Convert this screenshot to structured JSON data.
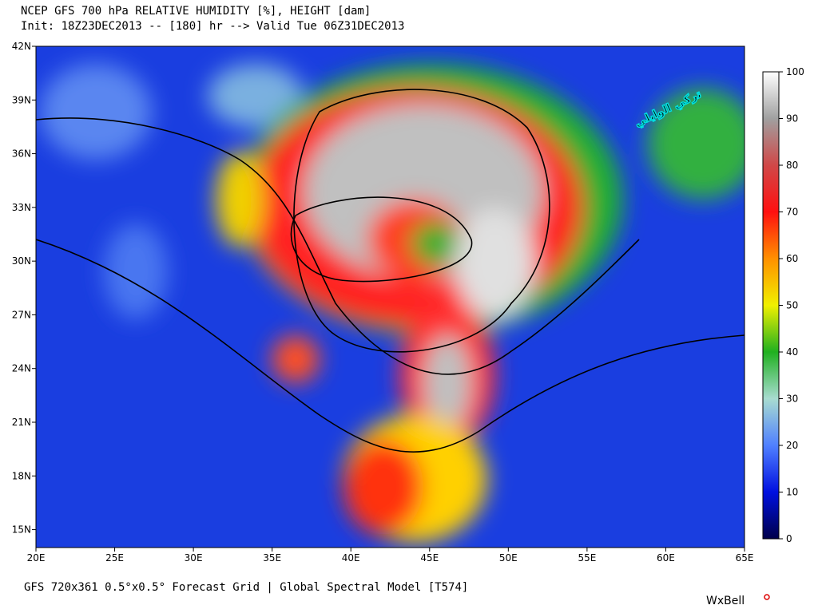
{
  "header": {
    "title": "NCEP GFS 700 hPa RELATIVE HUMIDITY [%], HEIGHT [dam]",
    "init": "Init: 18Z23DEC2013 -- [180] hr --> Valid Tue 06Z31DEC2013"
  },
  "map": {
    "xlim": [
      20,
      65
    ],
    "ylim": [
      14,
      42
    ],
    "xticks": [
      {
        "value": 20,
        "label": "20E"
      },
      {
        "value": 25,
        "label": "25E"
      },
      {
        "value": 30,
        "label": "30E"
      },
      {
        "value": 35,
        "label": "35E"
      },
      {
        "value": 40,
        "label": "40E"
      },
      {
        "value": 45,
        "label": "45E"
      },
      {
        "value": 50,
        "label": "50E"
      },
      {
        "value": 55,
        "label": "55E"
      },
      {
        "value": 60,
        "label": "60E"
      },
      {
        "value": 65,
        "label": "65E"
      }
    ],
    "yticks": [
      {
        "value": 15,
        "label": "15N"
      },
      {
        "value": 18,
        "label": "18N"
      },
      {
        "value": 21,
        "label": "21N"
      },
      {
        "value": 24,
        "label": "24N"
      },
      {
        "value": 27,
        "label": "27N"
      },
      {
        "value": 30,
        "label": "30N"
      },
      {
        "value": 33,
        "label": "33N"
      },
      {
        "value": 36,
        "label": "36N"
      },
      {
        "value": 39,
        "label": "39N"
      },
      {
        "value": 42,
        "label": "42N"
      }
    ]
  },
  "colorbar": {
    "lim": [
      0,
      100
    ],
    "ticks": [
      0,
      10,
      20,
      30,
      40,
      50,
      60,
      70,
      80,
      90,
      100
    ]
  },
  "footer": "GFS 720x361 0.5°x0.5° Forecast Grid | Global Spectral Model [T574]",
  "watermark": "تركي الوايلي",
  "logo": "WxBell"
}
